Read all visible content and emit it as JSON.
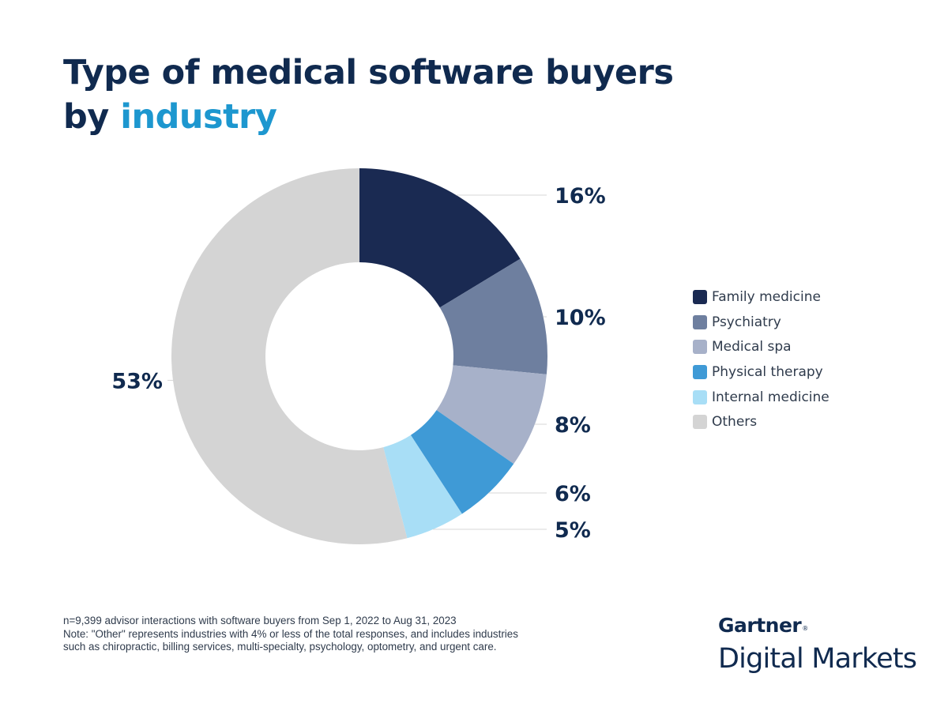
{
  "title": {
    "line1": "Type of medical software buyers",
    "line2_prefix": "by ",
    "line2_accent": "industry"
  },
  "chart_data": {
    "type": "pie",
    "categories": [
      "Family medicine",
      "Psychiatry",
      "Medical spa",
      "Physical therapy",
      "Internal medicine",
      "Others"
    ],
    "values": [
      16,
      10,
      8,
      6,
      5,
      53
    ],
    "labels": [
      "16%",
      "10%",
      "8%",
      "6%",
      "5%",
      "53%"
    ],
    "colors": [
      "#1a2a52",
      "#6e7f9f",
      "#a7b1c9",
      "#3f9ad6",
      "#a8def6",
      "#d4d4d4"
    ],
    "unit": "%",
    "legend_position": "right"
  },
  "footnote": {
    "line1": "n=9,399 advisor interactions with software buyers from Sep 1, 2022 to Aug 31, 2023",
    "line2": "Note: \"Other\" represents industries with 4% or less of the total responses, and includes industries such as chiropractic, billing services, multi-specialty, psychology, optometry, and urgent care."
  },
  "brand": {
    "top": "Gartner",
    "mark": "®",
    "bottom": "Digital Markets"
  }
}
